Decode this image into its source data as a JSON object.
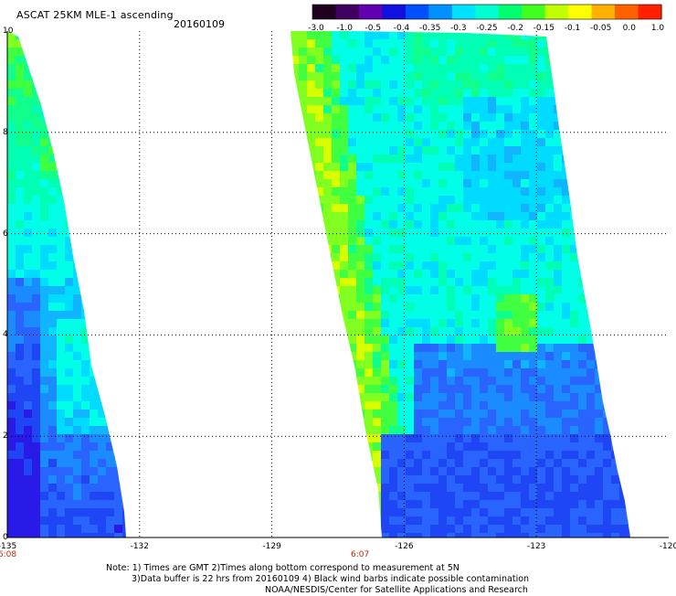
{
  "title": "ASCAT 25KM MLE-1 ascending",
  "date": "20160109",
  "colorbar": {
    "labels": [
      "-3.0",
      "-1.0",
      "-0.5",
      "-0.4",
      "-0.35",
      "-0.3",
      "-0.25",
      "-0.2",
      "-0.15",
      "-0.1",
      "-0.05",
      "0.0",
      "1.0"
    ],
    "colors": [
      "#200020",
      "#400060",
      "#6000b0",
      "#1010e0",
      "#0050ff",
      "#0090ff",
      "#00e0ff",
      "#00ffd0",
      "#00ff70",
      "#40ff20",
      "#c0ff00",
      "#ffff00",
      "#ffb000",
      "#ff6000",
      "#ff2000"
    ]
  },
  "map": {
    "x_ticks": [
      "-135",
      "-132",
      "-129",
      "-126",
      "-123",
      "-120"
    ],
    "y_ticks": [
      "0",
      "2",
      "4",
      "6",
      "8",
      "10"
    ],
    "time_labels": [
      {
        "text": "6:08",
        "lon": -135
      },
      {
        "text": "6:07",
        "lon": -127
      }
    ]
  },
  "notes": [
    "Note: 1) Times are GMT 2)Times along bottom correspond to measurement at 5N",
    "3)Data buffer is 22 hrs from 20160109 4) Black wind barbs indicate possible contamination",
    "NOAA/NESDIS/Center for Satellite Applications and Research"
  ]
}
